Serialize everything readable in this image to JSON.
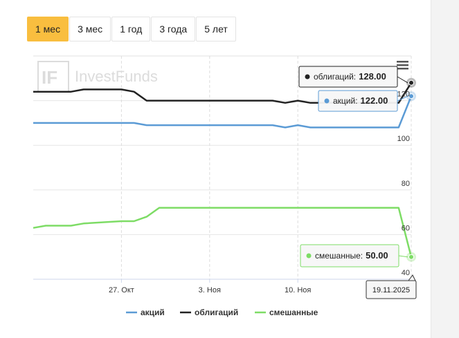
{
  "range_tabs": [
    {
      "label": "1 мес",
      "active": true
    },
    {
      "label": "3 мес",
      "active": false
    },
    {
      "label": "1 год",
      "active": false
    },
    {
      "label": "3 года",
      "active": false
    },
    {
      "label": "5 лет",
      "active": false
    }
  ],
  "watermark": {
    "mark": "IF",
    "text": "InvestFunds"
  },
  "menu_icon": "hamburger-icon",
  "colors": {
    "accent": "#f9be3f",
    "stocks": "#5b9bd5",
    "bonds": "#222222",
    "mixed": "#7ddc65"
  },
  "chart_data": {
    "type": "line",
    "x": [
      "2025-10-20",
      "2025-10-21",
      "2025-10-22",
      "2025-10-23",
      "2025-10-24",
      "2025-10-27",
      "2025-10-28",
      "2025-10-29",
      "2025-10-30",
      "2025-10-31",
      "2025-11-03",
      "2025-11-04",
      "2025-11-05",
      "2025-11-06",
      "2025-11-07",
      "2025-11-08",
      "2025-11-09",
      "2025-11-10",
      "2025-11-11",
      "2025-11-12",
      "2025-11-13",
      "2025-11-14",
      "2025-11-15",
      "2025-11-16",
      "2025-11-17",
      "2025-11-18",
      "2025-11-19"
    ],
    "series": [
      {
        "name": "акций",
        "color": "#5b9bd5",
        "values": [
          110,
          110,
          110,
          110,
          110,
          110,
          110,
          109,
          109,
          109,
          109,
          109,
          109,
          109,
          109,
          109,
          108,
          109,
          108,
          108,
          108,
          108,
          108,
          108,
          108,
          108,
          122
        ]
      },
      {
        "name": "облигаций",
        "color": "#222222",
        "values": [
          124,
          124,
          124,
          124,
          125,
          125,
          124,
          120,
          120,
          120,
          120,
          120,
          120,
          120,
          120,
          120,
          119,
          120,
          119,
          119,
          119,
          119,
          119,
          119,
          119,
          119,
          128
        ]
      },
      {
        "name": "смешанные",
        "color": "#7ddc65",
        "values": [
          63,
          64,
          64,
          64,
          65,
          66,
          66,
          68,
          72,
          72,
          72,
          72,
          72,
          72,
          72,
          72,
          72,
          72,
          72,
          72,
          72,
          72,
          72,
          72,
          72,
          72,
          50
        ]
      }
    ],
    "y_ticks": [
      40,
      60,
      80,
      100,
      120
    ],
    "ylim": [
      40,
      140
    ],
    "x_ticks": [
      {
        "date": "2025-10-27",
        "label": "27. Окт"
      },
      {
        "date": "2025-11-03",
        "label": "3. Ноя"
      },
      {
        "date": "2025-11-10",
        "label": "10. Ноя"
      }
    ],
    "tooltips": {
      "date": "19.11.2025",
      "items": [
        {
          "series": "облигаций",
          "label": "облигаций:",
          "value": "128.00"
        },
        {
          "series": "акций",
          "label": "акций:",
          "value": "122.00"
        },
        {
          "series": "смешанные",
          "label": "смешанные:",
          "value": "50.00"
        }
      ]
    },
    "legend": {
      "position": "bottom-center",
      "items": [
        "акций",
        "облигаций",
        "смешанные"
      ]
    },
    "grid": true
  }
}
